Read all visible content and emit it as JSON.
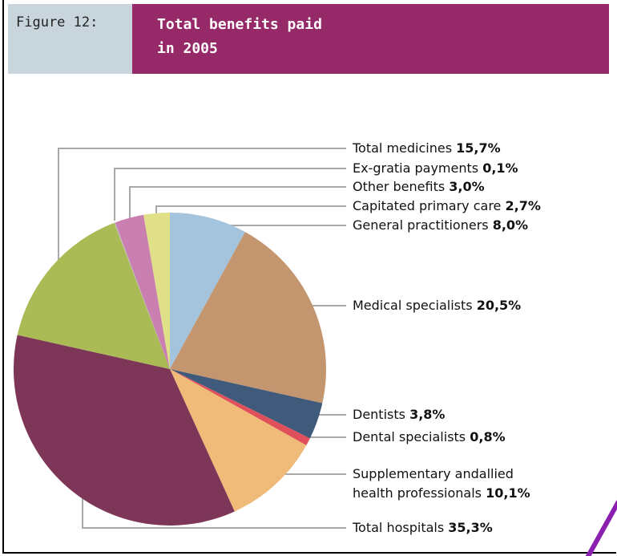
{
  "figure_label": "Figure 12:",
  "chart_data": {
    "type": "pie",
    "title": "Total benefits paid in 2005",
    "categories": [
      "General practitioners",
      "Medical specialists",
      "Dentists",
      "Dental specialists",
      "Supplementary andallied health professionals",
      "Total hospitals",
      "Total medicines",
      "Ex-gratia payments",
      "Other benefits",
      "Capitated primary care"
    ],
    "values": [
      8.0,
      20.5,
      3.8,
      0.8,
      10.1,
      35.3,
      15.7,
      0.1,
      3.0,
      2.7
    ],
    "value_labels": [
      "8,0%",
      "20,5%",
      "3,8%",
      "0,8%",
      "10,1%",
      "35,3%",
      "15,7%",
      "0,1%",
      "3,0%",
      "2,7%"
    ],
    "colors": [
      "#a3c4dc",
      "#c4966f",
      "#3f5a7a",
      "#e0505a",
      "#f0bb78",
      "#7d3558",
      "#aabb55",
      "#bbbbbb",
      "#c97fb0",
      "#e0e088"
    ]
  }
}
